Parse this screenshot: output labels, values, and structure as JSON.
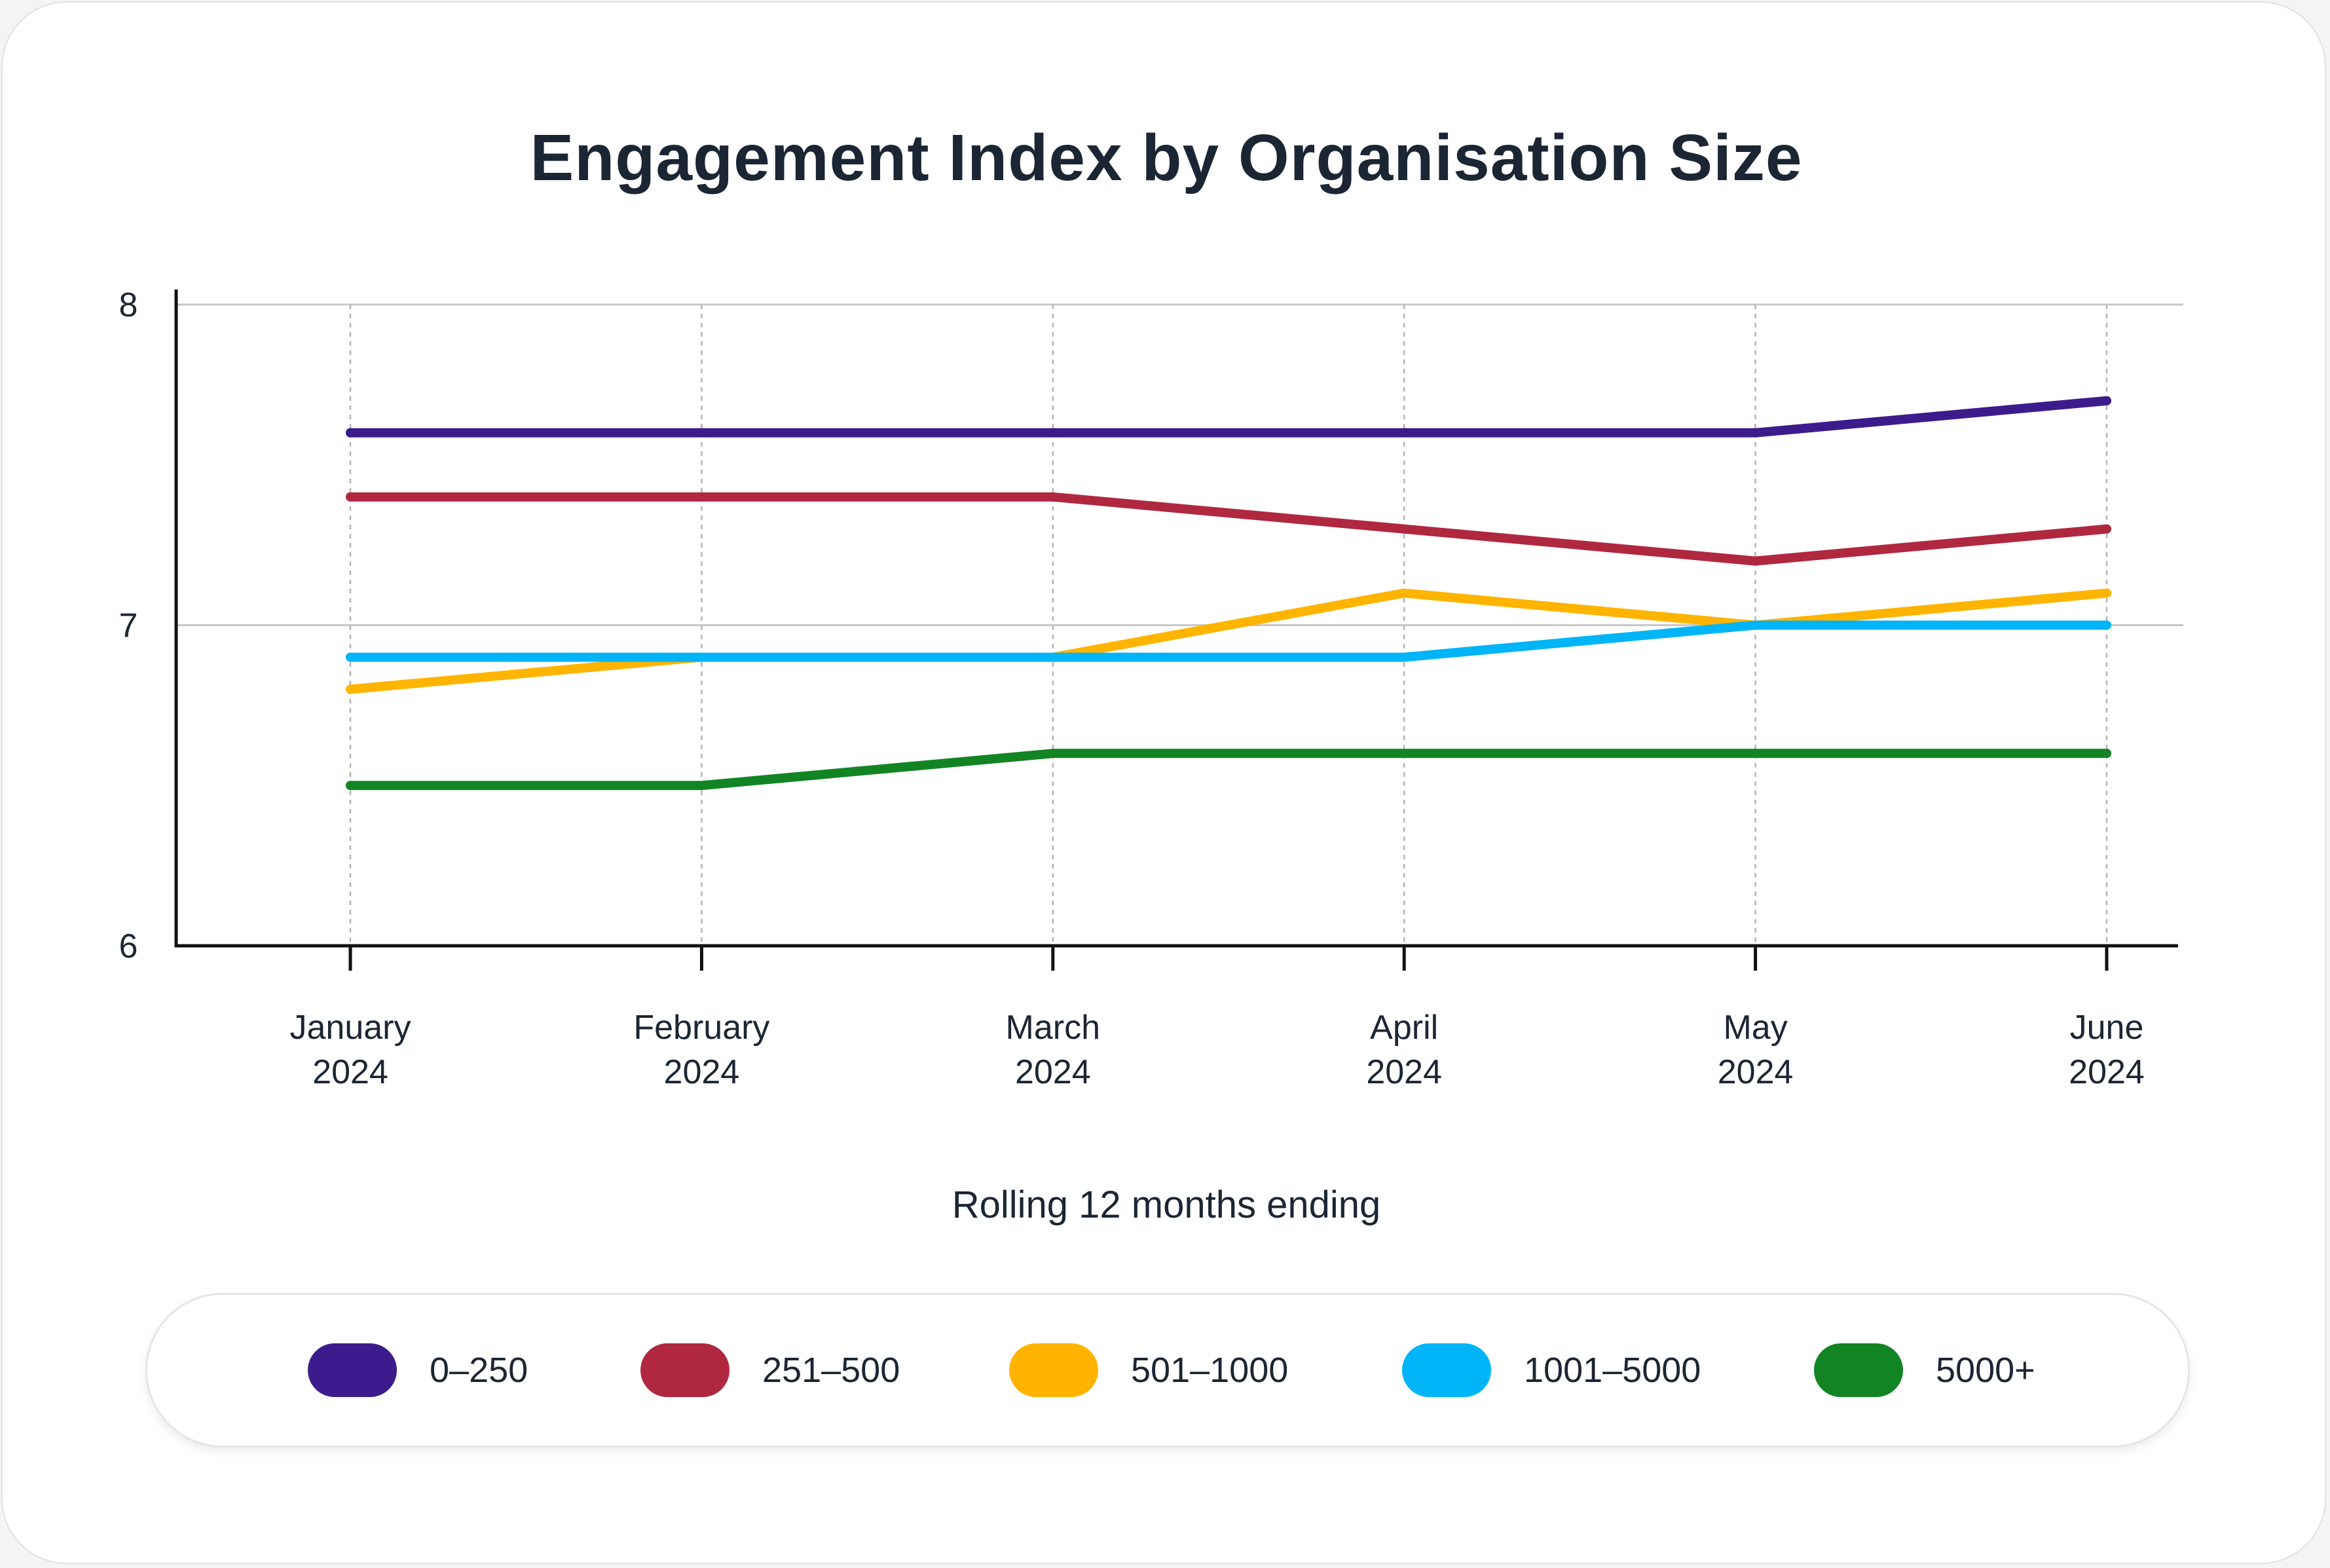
{
  "chart_data": {
    "type": "line",
    "title": "Engagement Index by Organisation Size",
    "xlabel": "Rolling 12 months ending",
    "ylabel": "",
    "ylim": [
      6,
      8
    ],
    "yticks": [
      "6",
      "7",
      "8"
    ],
    "grid": "horizontal solid at 7 and 8; vertical dashed at each month",
    "categories": [
      [
        "January",
        "2024"
      ],
      [
        "February",
        "2024"
      ],
      [
        "March",
        "2024"
      ],
      [
        "April",
        "2024"
      ],
      [
        "May",
        "2024"
      ],
      [
        "June",
        "2024"
      ]
    ],
    "series": [
      {
        "name": "0–250",
        "color": "#3c1c8c",
        "values": [
          7.6,
          7.6,
          7.6,
          7.6,
          7.6,
          7.7
        ]
      },
      {
        "name": "251–500",
        "color": "#b0283f",
        "values": [
          7.4,
          7.4,
          7.4,
          7.3,
          7.2,
          7.3
        ]
      },
      {
        "name": "501–1000",
        "color": "#ffb400",
        "values": [
          6.8,
          6.9,
          6.9,
          7.1,
          7.0,
          7.1
        ]
      },
      {
        "name": "1001–5000",
        "color": "#00b4f8",
        "values": [
          6.9,
          6.9,
          6.9,
          6.9,
          7.0,
          7.0
        ]
      },
      {
        "name": "5000+",
        "color": "#128424",
        "values": [
          6.5,
          6.5,
          6.6,
          6.6,
          6.6,
          6.6
        ]
      }
    ],
    "legend_position": "bottom"
  }
}
